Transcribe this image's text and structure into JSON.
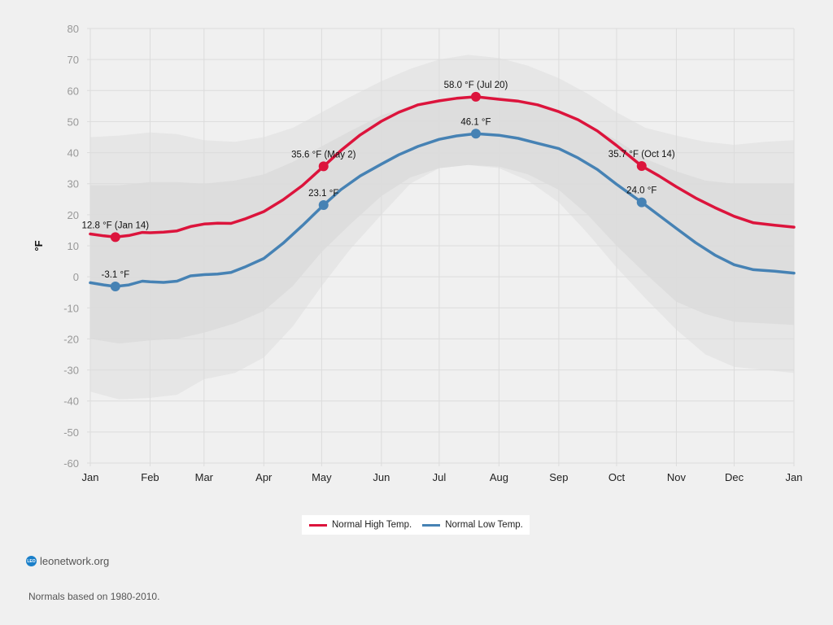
{
  "chart_data": {
    "type": "line",
    "title": "",
    "xlabel": "",
    "ylabel": "°F",
    "ylim": [
      -60,
      80
    ],
    "yticks": [
      80,
      70,
      60,
      50,
      40,
      30,
      20,
      10,
      0,
      -10,
      -20,
      -30,
      -40,
      -50,
      -60
    ],
    "xticks": [
      {
        "label": "Jan",
        "day": 0
      },
      {
        "label": "Feb",
        "day": 31
      },
      {
        "label": "Mar",
        "day": 59
      },
      {
        "label": "Apr",
        "day": 90
      },
      {
        "label": "May",
        "day": 120
      },
      {
        "label": "Jun",
        "day": 151
      },
      {
        "label": "Jul",
        "day": 181
      },
      {
        "label": "Aug",
        "day": 212
      },
      {
        "label": "Sep",
        "day": 243
      },
      {
        "label": "Oct",
        "day": 273
      },
      {
        "label": "Nov",
        "day": 304
      },
      {
        "label": "Dec",
        "day": 334
      },
      {
        "label": "Jan",
        "day": 365
      }
    ],
    "xlim_days": [
      0,
      365
    ],
    "grid": true,
    "legend_position": "bottom-center",
    "bands": [
      {
        "name": "outer-range",
        "color": "#e6e6e6",
        "x": [
          0,
          15,
          31,
          45,
          59,
          75,
          90,
          105,
          120,
          135,
          151,
          166,
          181,
          196,
          212,
          227,
          243,
          258,
          273,
          288,
          304,
          319,
          334,
          350,
          365
        ],
        "upper": [
          45,
          45.5,
          46.5,
          46,
          44,
          43.5,
          45,
          48,
          53,
          58,
          63,
          67,
          70,
          71.5,
          70.5,
          68,
          64,
          59,
          53,
          48,
          45.5,
          43.5,
          42.5,
          43.5,
          44
        ],
        "lower": [
          -37,
          -39.5,
          -39,
          -38,
          -33,
          -31,
          -26,
          -16,
          -3,
          9,
          20,
          30,
          35,
          36,
          35,
          31,
          24,
          14,
          3,
          -7,
          -17,
          -25,
          -29,
          -30,
          -31
        ]
      },
      {
        "name": "inner-range",
        "color": "#dddddd",
        "x": [
          0,
          15,
          31,
          45,
          59,
          75,
          90,
          105,
          120,
          135,
          151,
          166,
          181,
          196,
          212,
          227,
          243,
          258,
          273,
          288,
          304,
          319,
          334,
          350,
          365
        ],
        "upper": [
          29.5,
          29.5,
          30.5,
          30.5,
          30,
          31,
          33,
          37,
          42,
          47,
          52,
          55,
          57,
          58,
          58,
          56,
          53,
          49,
          44,
          38,
          34,
          31,
          30,
          30,
          30
        ],
        "lower": [
          -20,
          -21.5,
          -20.5,
          -20,
          -18,
          -15,
          -11,
          -3,
          8,
          17,
          26,
          32,
          35,
          36,
          35.5,
          33,
          28,
          20,
          10,
          1,
          -8,
          -12,
          -14.5,
          -15,
          -15.5
        ]
      }
    ],
    "series": [
      {
        "name": "Normal High Temp.",
        "color": "#dc143c",
        "x": [
          0,
          7,
          13,
          20,
          27,
          31,
          38,
          45,
          52,
          59,
          66,
          73,
          80,
          90,
          100,
          110,
          121,
          130,
          140,
          151,
          160,
          170,
          181,
          190,
          200,
          212,
          222,
          232,
          243,
          253,
          263,
          273,
          286,
          295,
          304,
          314,
          324,
          334,
          344,
          355,
          365
        ],
        "values": [
          13.8,
          13.2,
          12.8,
          13.3,
          14.3,
          14.2,
          14.4,
          14.8,
          16.2,
          17.0,
          17.3,
          17.2,
          18.6,
          21.0,
          24.8,
          29.4,
          35.6,
          40.7,
          45.7,
          50.1,
          53.0,
          55.4,
          56.7,
          57.5,
          58.0,
          57.2,
          56.6,
          55.4,
          53.2,
          50.6,
          47.0,
          42.3,
          35.7,
          32.5,
          29.0,
          25.4,
          22.3,
          19.5,
          17.4,
          16.6,
          16.0
        ]
      },
      {
        "name": "Normal Low Temp.",
        "color": "#4682b4",
        "x": [
          0,
          7,
          13,
          20,
          27,
          31,
          38,
          45,
          52,
          59,
          66,
          73,
          80,
          90,
          100,
          110,
          121,
          130,
          140,
          151,
          160,
          170,
          181,
          190,
          200,
          212,
          222,
          232,
          243,
          253,
          263,
          273,
          286,
          295,
          304,
          314,
          324,
          334,
          344,
          355,
          365
        ],
        "values": [
          -1.9,
          -2.6,
          -3.1,
          -2.6,
          -1.4,
          -1.6,
          -1.8,
          -1.4,
          0.3,
          0.7,
          0.9,
          1.4,
          3.1,
          5.9,
          10.8,
          16.5,
          23.1,
          28.1,
          32.5,
          36.3,
          39.3,
          42.0,
          44.3,
          45.4,
          46.1,
          45.6,
          44.6,
          43.0,
          41.3,
          38.3,
          34.6,
          29.8,
          24.0,
          19.8,
          15.6,
          11.0,
          7.0,
          3.9,
          2.3,
          1.8,
          1.2
        ]
      }
    ],
    "annotations": [
      {
        "series": 0,
        "day": 13,
        "value": 12.8,
        "label": "12.8 °F (Jan 14)"
      },
      {
        "series": 1,
        "day": 13,
        "value": -3.1,
        "label": "-3.1 °F"
      },
      {
        "series": 0,
        "day": 121,
        "value": 35.6,
        "label": "35.6 °F (May 2)"
      },
      {
        "series": 1,
        "day": 121,
        "value": 23.1,
        "label": "23.1 °F"
      },
      {
        "series": 0,
        "day": 200,
        "value": 58.0,
        "label": "58.0 °F (Jul 20)"
      },
      {
        "series": 1,
        "day": 200,
        "value": 46.1,
        "label": "46.1 °F"
      },
      {
        "series": 0,
        "day": 286,
        "value": 35.7,
        "label": "35.7 °F (Oct 14)"
      },
      {
        "series": 1,
        "day": 286,
        "value": 24.0,
        "label": "24.0 °F"
      }
    ]
  },
  "legend": {
    "items": [
      {
        "label": "Normal High Temp.",
        "color": "#dc143c"
      },
      {
        "label": "Normal Low Temp.",
        "color": "#4682b4"
      }
    ]
  },
  "source": {
    "icon_text": "LEO",
    "label": "leonetwork.org"
  },
  "footnote": "Normals based on 1980-2010."
}
